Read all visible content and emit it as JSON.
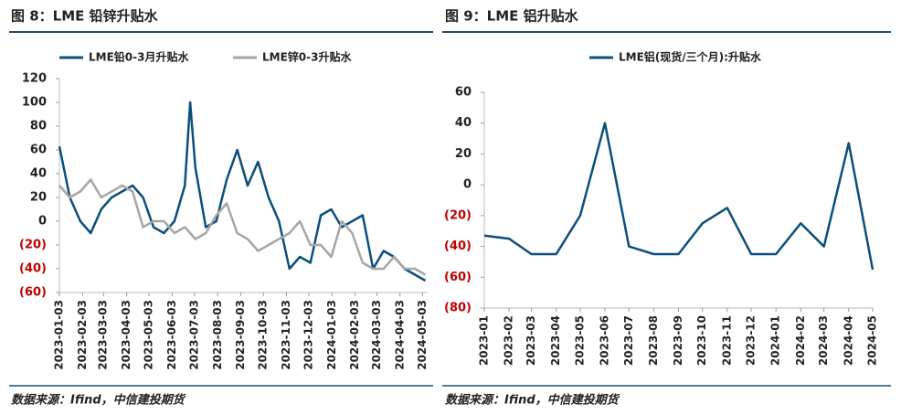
{
  "chart_data": [
    {
      "type": "line",
      "title": "图 8：LME 铅锌升贴水",
      "source": "数据来源：Ifind，中信建投期货",
      "x": [
        "2023-01-03",
        "2023-01-17",
        "2023-01-31",
        "2023-02-14",
        "2023-02-28",
        "2023-03-14",
        "2023-03-28",
        "2023-04-11",
        "2023-04-25",
        "2023-05-09",
        "2023-05-23",
        "2023-06-06",
        "2023-06-20",
        "2023-06-27",
        "2023-07-04",
        "2023-07-18",
        "2023-08-01",
        "2023-08-15",
        "2023-08-29",
        "2023-09-12",
        "2023-09-26",
        "2023-10-10",
        "2023-10-24",
        "2023-11-07",
        "2023-11-21",
        "2023-12-05",
        "2023-12-19",
        "2024-01-02",
        "2024-01-16",
        "2024-01-30",
        "2024-02-13",
        "2024-02-27",
        "2024-03-12",
        "2024-03-26",
        "2024-04-09",
        "2024-04-23",
        "2024-05-07"
      ],
      "series": [
        {
          "name": "LME铅0-3月升贴水",
          "color": "#0b4f7c",
          "values": [
            63,
            20,
            0,
            -10,
            10,
            20,
            25,
            30,
            20,
            -5,
            -10,
            0,
            30,
            100,
            45,
            -5,
            0,
            35,
            60,
            30,
            50,
            20,
            0,
            -40,
            -30,
            -35,
            5,
            10,
            -5,
            0,
            5,
            -40,
            -25,
            -30,
            -40,
            -45,
            -50
          ]
        },
        {
          "name": "LME锌0-3升贴水",
          "color": "#a6a6a6",
          "values": [
            30,
            20,
            25,
            35,
            20,
            25,
            30,
            25,
            -5,
            0,
            0,
            -10,
            -5,
            -10,
            -15,
            -10,
            5,
            15,
            -10,
            -15,
            -25,
            -20,
            -15,
            -10,
            0,
            -20,
            -20,
            -30,
            0,
            -10,
            -35,
            -40,
            -40,
            -30,
            -40,
            -40,
            -45
          ]
        }
      ],
      "xlim": [
        "2023-01-03",
        "2024-05-10"
      ],
      "xticks": [
        "2023-01-03",
        "2023-02-03",
        "2023-03-03",
        "2023-04-03",
        "2023-05-03",
        "2023-06-03",
        "2023-07-03",
        "2023-08-03",
        "2023-09-03",
        "2023-10-03",
        "2023-11-03",
        "2023-12-03",
        "2024-01-03",
        "2024-02-03",
        "2024-03-03",
        "2024-04-03",
        "2024-05-03"
      ],
      "ylim": [
        -60,
        120
      ],
      "yticks": [
        120,
        100,
        80,
        60,
        40,
        20,
        0,
        {
          "value": -20,
          "label": "(20)"
        },
        {
          "value": -40,
          "label": "(40)"
        },
        {
          "value": -60,
          "label": "(60)"
        }
      ],
      "negative_label_color": "#c00000",
      "legend": "top"
    },
    {
      "type": "line",
      "title": "图 9：LME 铝升贴水",
      "source": "数据来源：Ifind，中信建投期货",
      "x": [
        "2023-01",
        "2023-02",
        "2023-03",
        "2023-04",
        "2023-05",
        "2023-06",
        "2023-07",
        "2023-08",
        "2023-09",
        "2023-10",
        "2023-11",
        "2023-12",
        "2024-01",
        "2024-02",
        "2024-03",
        "2024-04",
        "2024-05"
      ],
      "series": [
        {
          "name": "LME铝(现货/三个月):升贴水",
          "color": "#0b4f7c",
          "values": [
            -33,
            -35,
            -45,
            -45,
            -20,
            40,
            -40,
            -45,
            -45,
            -25,
            -15,
            -45,
            -45,
            -25,
            -40,
            27,
            -55
          ]
        }
      ],
      "xlim": [
        "2023-01",
        "2024-05"
      ],
      "xticks": [
        "2023-01",
        "2023-02",
        "2023-03",
        "2023-04",
        "2023-05",
        "2023-06",
        "2023-07",
        "2023-08",
        "2023-09",
        "2023-10",
        "2023-11",
        "2023-12",
        "2024-01",
        "2024-02",
        "2024-03",
        "2024-04",
        "2024-05"
      ],
      "ylim": [
        -80,
        60
      ],
      "yticks": [
        60,
        40,
        20,
        0,
        {
          "value": -20,
          "label": "(20)"
        },
        {
          "value": -40,
          "label": "(40)"
        },
        {
          "value": -60,
          "label": "(60)"
        },
        {
          "value": -80,
          "label": "(80)"
        }
      ],
      "negative_label_color": "#c00000",
      "legend": "top"
    }
  ]
}
